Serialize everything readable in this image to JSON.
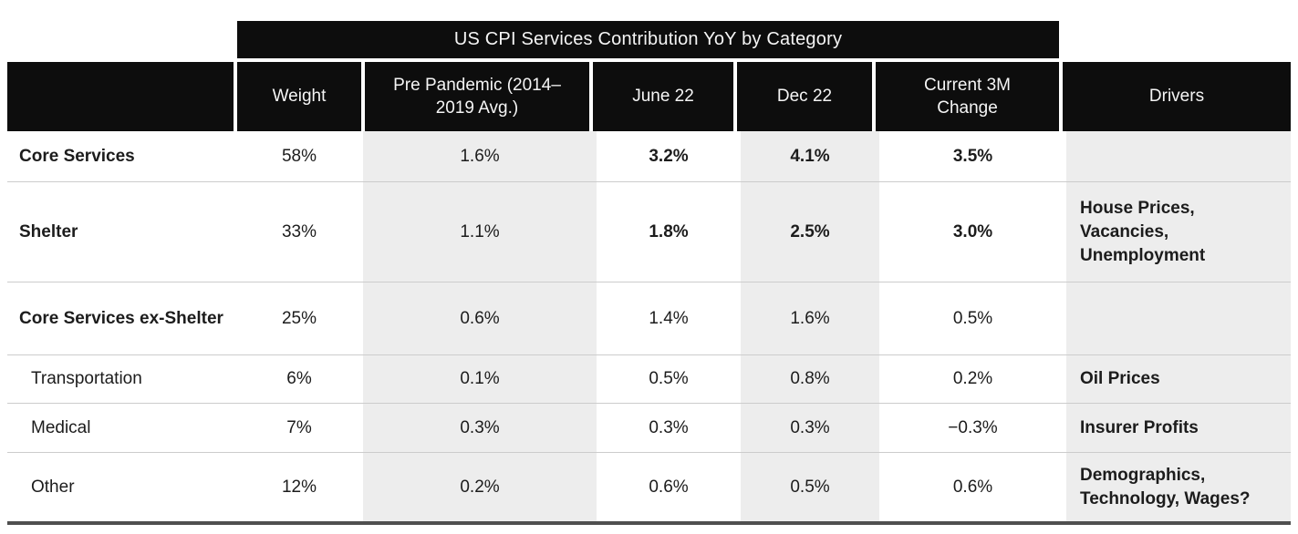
{
  "title": "US CPI Services Contribution YoY by Category",
  "columns": {
    "category": "",
    "weight": "Weight",
    "pre_pandemic": "Pre Pandemic (2014–2019 Avg.)",
    "june_22": "June 22",
    "dec_22": "Dec 22",
    "current_3m": "Current 3M Change",
    "drivers": "Drivers"
  },
  "rows": [
    {
      "label": "Core Services",
      "weight": "58%",
      "pre_pandemic": "1.6%",
      "june_22": "3.2%",
      "dec_22": "4.1%",
      "current_3m": "3.5%",
      "driver_lines": []
    },
    {
      "label": "Shelter",
      "weight": "33%",
      "pre_pandemic": "1.1%",
      "june_22": "1.8%",
      "dec_22": "2.5%",
      "current_3m": "3.0%",
      "driver_lines": [
        "House Prices,",
        "Vacancies,",
        "Unemployment"
      ]
    },
    {
      "label": "Core Services ex-Shelter",
      "weight": "25%",
      "pre_pandemic": "0.6%",
      "june_22": "1.4%",
      "dec_22": "1.6%",
      "current_3m": "0.5%",
      "driver_lines": []
    },
    {
      "label": "Transportation",
      "weight": "6%",
      "pre_pandemic": "0.1%",
      "june_22": "0.5%",
      "dec_22": "0.8%",
      "current_3m": "0.2%",
      "driver_lines": [
        "Oil Prices"
      ]
    },
    {
      "label": "Medical",
      "weight": "7%",
      "pre_pandemic": "0.3%",
      "june_22": "0.3%",
      "dec_22": "0.3%",
      "current_3m": "−0.3%",
      "driver_lines": [
        "Insurer Profits"
      ]
    },
    {
      "label": "Other",
      "weight": "12%",
      "pre_pandemic": "0.2%",
      "june_22": "0.6%",
      "dec_22": "0.5%",
      "current_3m": "0.6%",
      "driver_lines": [
        "Demographics,",
        "Technology, Wages?"
      ]
    }
  ],
  "colors": {
    "header_bg": "#0d0d0d",
    "header_text": "#f5f5f5",
    "column_shade": "#ededed",
    "row_divider": "#cccccc",
    "bottom_rule": "#4f4f4f",
    "body_text": "#1c1c1c"
  },
  "chart_data": {
    "type": "table",
    "title": "US CPI Services Contribution YoY by Category",
    "columns": [
      "Category",
      "Weight",
      "Pre Pandemic (2014–2019 Avg.)",
      "June 22",
      "Dec 22",
      "Current 3M Change",
      "Drivers"
    ],
    "rows": [
      [
        "Core Services",
        "58%",
        "1.6%",
        "3.2%",
        "4.1%",
        "3.5%",
        ""
      ],
      [
        "Shelter",
        "33%",
        "1.1%",
        "1.8%",
        "2.5%",
        "3.0%",
        "House Prices, Vacancies, Unemployment"
      ],
      [
        "Core Services ex-Shelter",
        "25%",
        "0.6%",
        "1.4%",
        "1.6%",
        "0.5%",
        ""
      ],
      [
        "Transportation",
        "6%",
        "0.1%",
        "0.5%",
        "0.8%",
        "0.2%",
        "Oil Prices"
      ],
      [
        "Medical",
        "7%",
        "0.3%",
        "0.3%",
        "0.3%",
        "−0.3%",
        "Insurer Profits"
      ],
      [
        "Other",
        "12%",
        "0.2%",
        "0.6%",
        "0.5%",
        "0.6%",
        "Demographics, Technology, Wages?"
      ]
    ],
    "notes": "Values are year-over-year CPI contribution percentages; emphasized (bold) figures: Core Services and Shelter rows for June 22, Dec 22 and Current 3M Change."
  }
}
